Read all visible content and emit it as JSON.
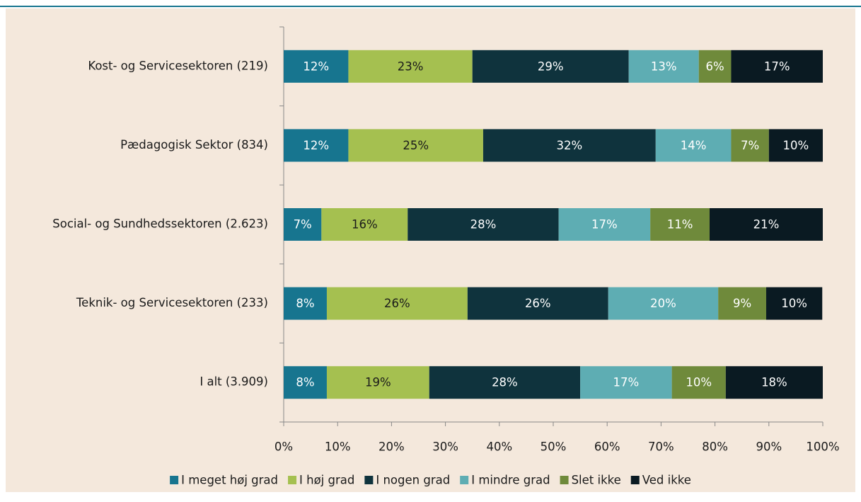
{
  "chart_data": {
    "type": "stacked_bar_horizontal",
    "categories": [
      "Kost- og Servicesektoren (219)",
      "Pædagogisk Sektor (834)",
      "Social- og Sundhedssektoren (2.623)",
      "Teknik- og Servicesektoren (233)",
      "I alt (3.909)"
    ],
    "series": [
      {
        "name": "I meget høj grad",
        "color": "#17758f",
        "label_color": "#ffffff",
        "values": [
          12,
          12,
          7,
          8,
          8
        ],
        "value_labels": [
          "12%",
          "12%",
          "7%",
          "8%",
          "8%"
        ]
      },
      {
        "name": "I høj grad",
        "color": "#a5c050",
        "label_color": "#1a1a1a",
        "values": [
          23,
          25,
          16,
          26.1,
          19
        ],
        "value_labels": [
          "23%",
          "25%",
          "16%",
          "26%",
          "19%"
        ]
      },
      {
        "name": "I nogen grad",
        "color": "#0f333d",
        "label_color": "#ffffff",
        "values": [
          29,
          32,
          28,
          26.1,
          28
        ],
        "value_labels": [
          "29%",
          "32%",
          "28%",
          "26%",
          "28%"
        ]
      },
      {
        "name": "I mindre grad",
        "color": "#5eadb3",
        "label_color": "#ffffff",
        "values": [
          13,
          14,
          17,
          20.4,
          17
        ],
        "value_labels": [
          "13%",
          "14%",
          "17%",
          "20%",
          "17%"
        ]
      },
      {
        "name": "Slet ikke",
        "color": "#6f8a3b",
        "label_color": "#ffffff",
        "values": [
          6,
          7,
          11,
          8.9,
          10
        ],
        "value_labels": [
          "6%",
          "7%",
          "11%",
          "9%",
          "10%"
        ]
      },
      {
        "name": "Ved ikke",
        "color": "#0a1a22",
        "label_color": "#ffffff",
        "values": [
          17,
          10,
          21,
          10.4,
          18
        ],
        "value_labels": [
          "17%",
          "10%",
          "21%",
          "10%",
          "18%"
        ]
      }
    ],
    "xlim": [
      0,
      100
    ],
    "xticks": [
      {
        "value": 0,
        "label": "0%"
      },
      {
        "value": 10,
        "label": "10%"
      },
      {
        "value": 20,
        "label": "20%"
      },
      {
        "value": 30,
        "label": "30%"
      },
      {
        "value": 40,
        "label": "40%"
      },
      {
        "value": 50,
        "label": "50%"
      },
      {
        "value": 60,
        "label": "60%"
      },
      {
        "value": 70,
        "label": "70%"
      },
      {
        "value": 80,
        "label": "80%"
      },
      {
        "value": 90,
        "label": "90%"
      },
      {
        "value": 100,
        "label": "100%"
      }
    ],
    "legend": "bottom"
  }
}
